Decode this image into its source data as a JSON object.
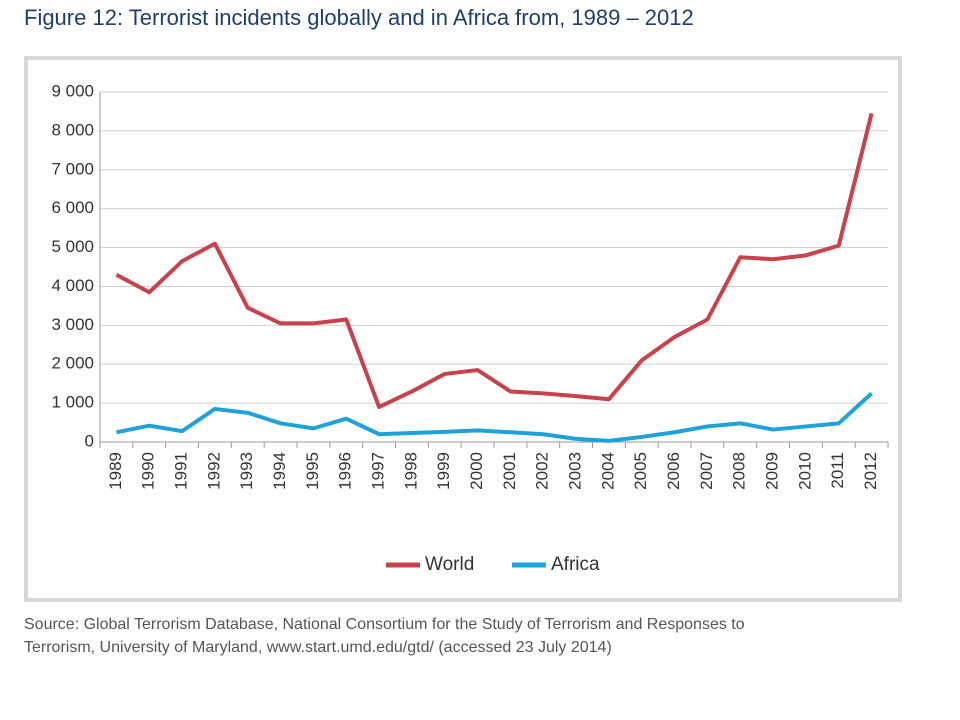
{
  "chart_data": {
    "type": "line",
    "title": "Figure 12: Terrorist incidents globally and in Africa from, 1989 – 2012",
    "categories": [
      "1989",
      "1990",
      "1991",
      "1992",
      "1993",
      "1994",
      "1995",
      "1996",
      "1997",
      "1998",
      "1999",
      "2000",
      "2001",
      "2002",
      "2003",
      "2004",
      "2005",
      "2006",
      "2007",
      "2008",
      "2009",
      "2010",
      "2011",
      "2012"
    ],
    "series": [
      {
        "name": "World",
        "color": "#c8424b",
        "values": [
          4300,
          3850,
          4650,
          5100,
          3450,
          3050,
          3050,
          3150,
          900,
          1300,
          1750,
          1850,
          1300,
          1250,
          1180,
          1100,
          2100,
          2700,
          3150,
          4750,
          4700,
          4800,
          5050,
          8450
        ]
      },
      {
        "name": "Africa",
        "color": "#1fa2dc",
        "values": [
          250,
          420,
          280,
          850,
          750,
          480,
          350,
          600,
          200,
          230,
          260,
          300,
          250,
          200,
          80,
          30,
          130,
          250,
          400,
          480,
          320,
          400,
          480,
          1250
        ]
      }
    ],
    "ylim": [
      0,
      9000
    ],
    "yticks": [
      0,
      {
        "value": 1000,
        "label": "1 000"
      },
      {
        "value": 2000,
        "label": "2 000"
      },
      {
        "value": 3000,
        "label": "3 000"
      },
      {
        "value": 4000,
        "label": "4 000"
      },
      {
        "value": 5000,
        "label": "5 000"
      },
      {
        "value": 6000,
        "label": "6 000"
      },
      {
        "value": 7000,
        "label": "7 000"
      },
      {
        "value": 8000,
        "label": "8 000"
      },
      {
        "value": 9000,
        "label": "9 000"
      }
    ],
    "grid": true,
    "legend": "bottom",
    "source": [
      "Source: Global Terrorism Database, National Consortium for the Study of Terrorism and Responses to",
      "Terrorism, University of Maryland, www.start.umd.edu/gtd/ (accessed 23 July 2014)"
    ]
  }
}
